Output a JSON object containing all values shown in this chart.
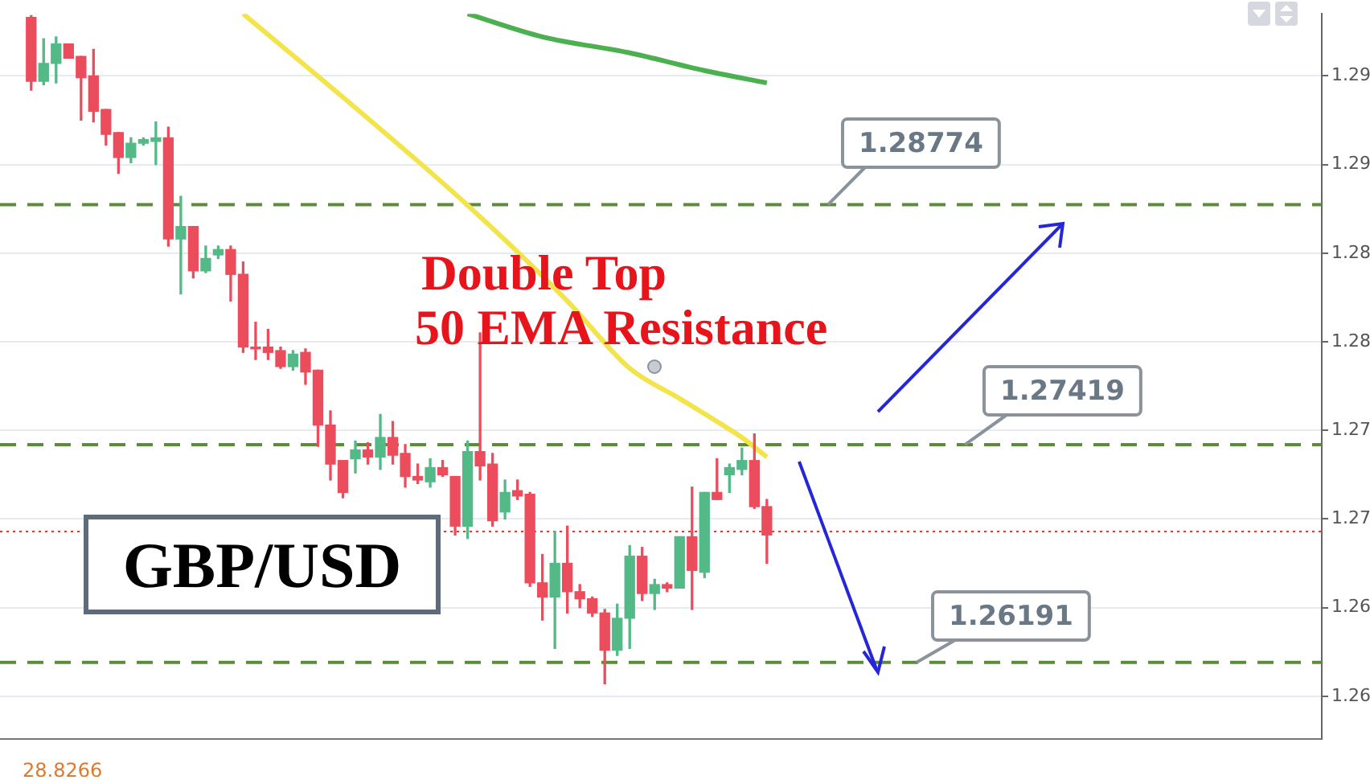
{
  "chart_data": {
    "type": "candlestick",
    "categories": [
      null,
      null,
      null,
      null,
      null,
      null,
      null,
      null,
      null,
      null,
      null,
      null,
      null,
      null,
      null,
      null,
      null,
      null,
      null,
      null,
      null,
      null,
      null,
      null,
      null,
      null,
      null,
      null,
      null,
      null,
      null,
      null,
      null,
      null,
      null,
      null,
      null,
      null,
      null,
      null,
      null,
      null,
      null,
      null,
      null,
      null,
      null,
      null,
      null,
      null,
      null,
      null,
      null,
      null,
      null,
      null,
      null,
      null,
      null,
      null,
      null,
      null,
      null,
      null,
      null,
      null,
      null,
      null,
      null,
      null,
      null,
      null,
      null,
      null,
      null,
      null,
      null,
      null,
      null,
      null,
      null,
      null,
      null,
      null,
      null,
      null,
      null,
      null,
      null,
      null,
      null,
      null,
      null,
      null,
      null,
      null,
      null,
      null,
      null,
      null,
      null,
      null,
      null,
      null,
      null,
      null
    ],
    "ohlc": [
      null,
      null,
      [
        1.2983,
        1.2984,
        1.2942,
        1.2947
      ],
      [
        1.2947,
        1.2971,
        1.2945,
        1.2957
      ],
      [
        1.2957,
        1.2972,
        1.2946,
        1.2968
      ],
      [
        1.2968,
        1.2968,
        1.296,
        1.296
      ],
      [
        1.2961,
        1.2961,
        1.2925,
        1.2949
      ],
      [
        1.295,
        1.2965,
        1.2924,
        1.293
      ],
      [
        1.2931,
        1.2931,
        1.2911,
        1.2917
      ],
      [
        1.2918,
        1.2918,
        1.2895,
        1.2904
      ],
      [
        1.2904,
        1.2915,
        1.2901,
        1.2912
      ],
      [
        1.2912,
        1.2915,
        1.2911,
        1.2914
      ],
      [
        1.2913,
        1.2924,
        1.29,
        1.2915
      ],
      [
        1.2915,
        1.2921,
        1.2854,
        1.2858
      ],
      [
        1.2858,
        1.2882,
        1.2827,
        1.2865
      ],
      [
        1.2865,
        1.2865,
        1.2836,
        1.284
      ],
      [
        1.284,
        1.2854,
        1.2839,
        1.2847
      ],
      [
        1.2849,
        1.2854,
        1.2847,
        1.2852
      ],
      [
        1.2852,
        1.2854,
        1.2823,
        1.2838
      ],
      [
        1.2838,
        1.2845,
        1.2794,
        1.2797
      ],
      [
        1.2797,
        1.2811,
        1.279,
        1.2796
      ],
      [
        1.2797,
        1.2807,
        1.279,
        1.2794
      ],
      [
        1.2795,
        1.2797,
        1.2785,
        1.2786
      ],
      [
        1.2786,
        1.2795,
        1.2784,
        1.2793
      ],
      [
        1.2794,
        1.2796,
        1.2776,
        1.2783
      ],
      [
        1.2784,
        1.2784,
        1.2741,
        1.2753
      ],
      [
        1.2753,
        1.2761,
        1.2722,
        1.2731
      ],
      [
        1.2733,
        1.2733,
        1.2712,
        1.2715
      ],
      [
        1.2734,
        1.2744,
        1.2726,
        1.2739
      ],
      [
        1.2739,
        1.2743,
        1.2731,
        1.2735
      ],
      [
        1.2735,
        1.2759,
        1.2728,
        1.2746
      ],
      [
        1.2746,
        1.2755,
        1.2731,
        1.2736
      ],
      [
        1.2737,
        1.2742,
        1.2718,
        1.2724
      ],
      [
        1.2724,
        1.2731,
        1.272,
        1.2722
      ],
      [
        1.2721,
        1.2734,
        1.2718,
        1.2729
      ],
      [
        1.2729,
        1.2733,
        1.2724,
        1.2725
      ],
      [
        1.2724,
        1.2724,
        1.2691,
        1.2696
      ],
      [
        1.2696,
        1.2744,
        1.2689,
        1.2738
      ],
      [
        1.2738,
        1.2805,
        1.2722,
        1.273
      ],
      [
        1.2731,
        1.2737,
        1.2696,
        1.2699
      ],
      [
        1.2704,
        1.2722,
        1.27,
        1.2715
      ],
      [
        1.2716,
        1.2722,
        1.2711,
        1.2713
      ],
      [
        1.2714,
        1.2715,
        1.2662,
        1.2664
      ],
      [
        1.2664,
        1.268,
        1.2643,
        1.2656
      ],
      [
        1.2656,
        1.2693,
        1.2627,
        1.2675
      ],
      [
        1.2675,
        1.2696,
        1.2647,
        1.2659
      ],
      [
        1.2659,
        1.2663,
        1.265,
        1.2655
      ],
      [
        1.2655,
        1.2656,
        1.2645,
        1.2647
      ],
      [
        1.2647,
        1.2649,
        1.2607,
        1.2626
      ],
      [
        1.2626,
        1.2652,
        1.2623,
        1.2644
      ],
      [
        1.2644,
        1.2685,
        1.2627,
        1.2679
      ],
      [
        1.2679,
        1.2684,
        1.2654,
        1.2658
      ],
      [
        1.2658,
        1.2666,
        1.2649,
        1.2663
      ],
      [
        1.2663,
        1.2664,
        1.2659,
        1.2661
      ],
      [
        1.2661,
        1.269,
        1.2661,
        1.269
      ],
      [
        1.269,
        1.2718,
        1.2649,
        1.2671
      ],
      [
        1.267,
        1.2715,
        1.2667,
        1.2715
      ],
      [
        1.2715,
        1.2734,
        1.2711,
        1.2711
      ],
      [
        1.2725,
        1.2731,
        1.2715,
        1.2729
      ],
      [
        1.2728,
        1.274,
        1.2725,
        1.2733
      ],
      [
        1.2733,
        1.2748,
        1.2706,
        1.2707
      ],
      [
        1.2707,
        1.2711,
        1.2675,
        1.2691
      ],
      null,
      null,
      null,
      null,
      null,
      null,
      null,
      null,
      null,
      null,
      null,
      null,
      null,
      null,
      null,
      null,
      null,
      null,
      null,
      null,
      null,
      null,
      null,
      null,
      null,
      null,
      null,
      null,
      null,
      null,
      null,
      null,
      null,
      null,
      null,
      null,
      null,
      null,
      null,
      null,
      null,
      null,
      null,
      null
    ],
    "colors": [
      null,
      null,
      "#eb4d5c",
      "#53b987",
      "#53b987",
      "#eb4d5c",
      "#eb4d5c",
      "#eb4d5c",
      "#eb4d5c",
      "#eb4d5c",
      "#53b987",
      "#53b987",
      "#53b987",
      "#eb4d5c",
      "#53b987",
      "#eb4d5c",
      "#53b987",
      "#53b987",
      "#eb4d5c",
      "#eb4d5c",
      "#eb4d5c",
      "#eb4d5c",
      "#eb4d5c",
      "#53b987",
      "#eb4d5c",
      "#eb4d5c",
      "#eb4d5c",
      "#eb4d5c",
      "#53b987",
      "#eb4d5c",
      "#53b987",
      "#eb4d5c",
      "#eb4d5c",
      "#eb4d5c",
      "#53b987",
      "#eb4d5c",
      "#eb4d5c",
      "#53b987",
      "#eb4d5c",
      "#eb4d5c",
      "#53b987",
      "#eb4d5c",
      "#eb4d5c",
      "#eb4d5c",
      "#53b987",
      "#eb4d5c",
      "#eb4d5c",
      "#eb4d5c",
      "#eb4d5c",
      "#53b987",
      "#53b987",
      "#eb4d5c",
      "#53b987",
      "#eb4d5c",
      "#53b987",
      "#eb4d5c",
      "#53b987",
      "#eb4d5c",
      "#53b987",
      "#53b987",
      "#eb4d5c",
      "#eb4d5c",
      null,
      null,
      null,
      null,
      null,
      null,
      null,
      null,
      null,
      null,
      null,
      null,
      null,
      null,
      null,
      null,
      null,
      null,
      null,
      null,
      null,
      null,
      null,
      null,
      null,
      null,
      null,
      null,
      null,
      null,
      null,
      null,
      null,
      null,
      null,
      null,
      null,
      null,
      null,
      null,
      null,
      null,
      null,
      null
    ],
    "series": [
      {
        "type": "line",
        "color": "#f2e44a",
        "values": [
          null,
          null,
          null,
          null,
          null,
          null,
          null,
          null,
          null,
          null,
          null,
          null,
          null,
          null,
          null,
          null,
          null,
          null,
          null,
          1.2985,
          null,
          null,
          null,
          null,
          null,
          null,
          null,
          null,
          1.2932,
          null,
          null,
          null,
          null,
          null,
          null,
          null,
          null,
          1.2877,
          null,
          null,
          null,
          null,
          null,
          null,
          null,
          1.2823,
          null,
          null,
          null,
          null,
          1.2785,
          null,
          null,
          null,
          1.2768,
          null,
          null,
          1.2755,
          null,
          1.2746,
          null,
          1.2735,
          null,
          null,
          null,
          null,
          null,
          null,
          null,
          null,
          null,
          null,
          null,
          null,
          null,
          null,
          null,
          null,
          null,
          null,
          null,
          null,
          null,
          null,
          null,
          null,
          null,
          null,
          null,
          null,
          null,
          null,
          null,
          null,
          null,
          null,
          null,
          null,
          null,
          null,
          null,
          null,
          null,
          null,
          null,
          null
        ]
      },
      {
        "type": "line",
        "color": "#4caf50",
        "values": [
          null,
          null,
          null,
          null,
          null,
          null,
          null,
          null,
          null,
          null,
          null,
          null,
          null,
          null,
          null,
          null,
          null,
          null,
          null,
          null,
          null,
          null,
          null,
          null,
          null,
          null,
          null,
          null,
          null,
          null,
          null,
          null,
          null,
          null,
          null,
          null,
          null,
          1.2985,
          null,
          null,
          null,
          null,
          null,
          1.2972,
          null,
          null,
          null,
          null,
          null,
          null,
          1.2963,
          null,
          null,
          null,
          null,
          null,
          1.2953,
          null,
          null,
          null,
          null,
          1.2946,
          null,
          null,
          null,
          null,
          null,
          null,
          null,
          null,
          null,
          null,
          null,
          null,
          null,
          null,
          null,
          null,
          null,
          null,
          null,
          null,
          null,
          null,
          null,
          null,
          null,
          null,
          null,
          null,
          null,
          null,
          null,
          null,
          null,
          null,
          null,
          null,
          null,
          null,
          null,
          null,
          null,
          null,
          null,
          null
        ]
      }
    ],
    "ylim": [
      1.2576,
      1.2985
    ],
    "yticks": [
      {
        "value": 1.295,
        "label": "1.29"
      },
      {
        "value": 1.29,
        "label": "1.29"
      },
      {
        "value": 1.285,
        "label": "1.28"
      },
      {
        "value": 1.28,
        "label": "1.28"
      },
      {
        "value": 1.275,
        "label": "1.27"
      },
      {
        "value": 1.27,
        "label": "1.27"
      },
      {
        "value": 1.265,
        "label": "1.26"
      },
      {
        "value": 1.26,
        "label": "1.26"
      }
    ],
    "tick_labels": "y",
    "grid": "y",
    "ref_lines": [
      {
        "axis": "y",
        "value": 1.28774,
        "label": "1.28774",
        "color": "#5b8c3a",
        "line_style": "dashed"
      },
      {
        "axis": "y",
        "value": 1.27419,
        "label": "1.27419",
        "color": "#5b8c3a",
        "line_style": "dashed"
      },
      {
        "axis": "y",
        "value": 1.26191,
        "label": "1.26191",
        "color": "#5b8c3a",
        "line_style": "dashed"
      },
      {
        "axis": "y",
        "value": 1.2693,
        "color": "#e53935",
        "line_style": "dotted"
      }
    ],
    "annotations": [
      "Double Top",
      "50 EMA Resistance",
      "GBP/USD",
      "28.8266"
    ]
  }
}
